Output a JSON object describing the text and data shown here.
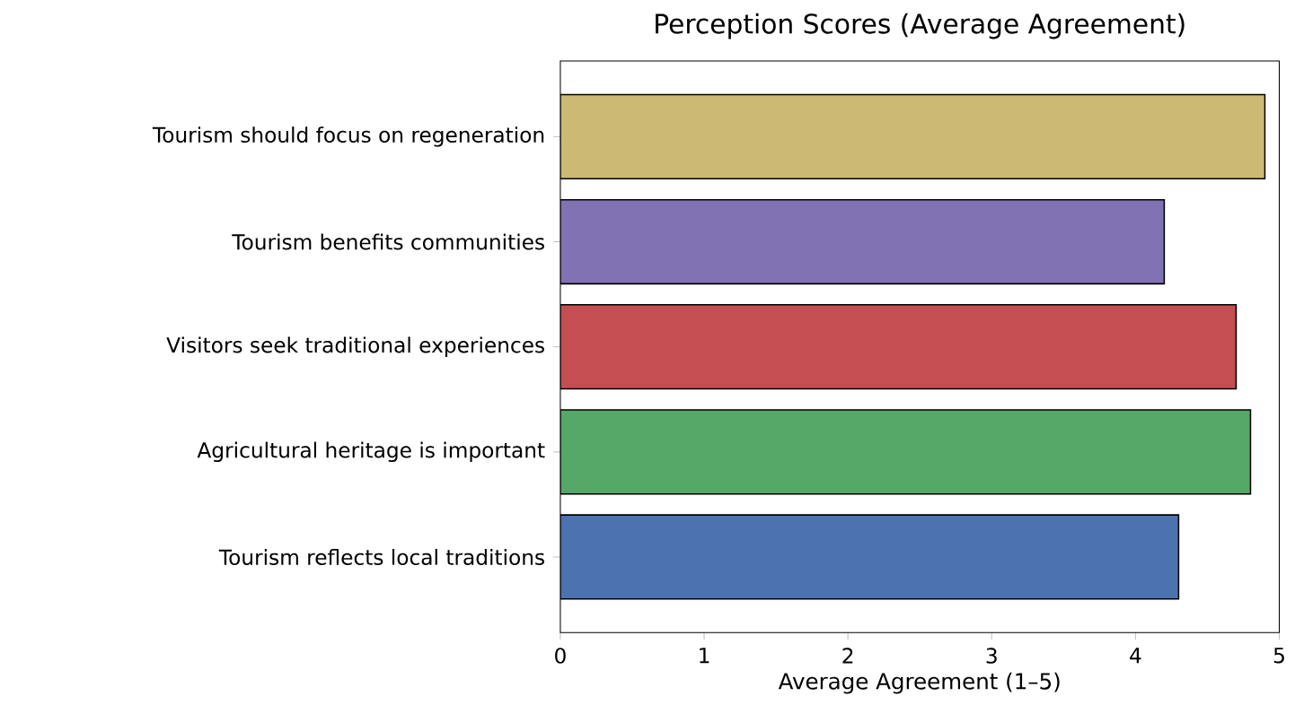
{
  "chart_data": {
    "type": "bar",
    "orientation": "horizontal",
    "title": "Perception Scores (Average Agreement)",
    "xlabel": "Average Agreement (1–5)",
    "categories": [
      "Tourism should focus on regeneration",
      "Tourism benefits communities",
      "Visitors seek traditional experiences",
      "Agricultural heritage is important",
      "Tourism reflects local traditions"
    ],
    "values": [
      4.9,
      4.2,
      4.7,
      4.8,
      4.3
    ],
    "colors": [
      "#ccb974",
      "#8172b3",
      "#c44e52",
      "#55a868",
      "#4c72b0"
    ],
    "xlim": [
      0,
      5
    ],
    "xticks": [
      0,
      1,
      2,
      3,
      4,
      5
    ]
  }
}
